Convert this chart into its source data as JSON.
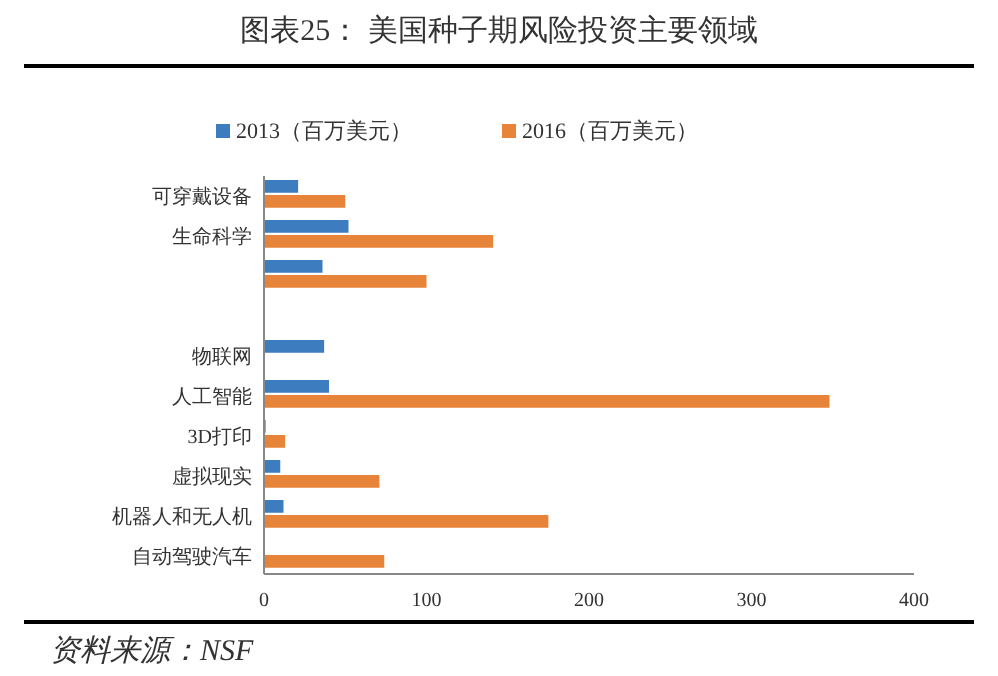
{
  "chart_data": {
    "type": "bar",
    "orientation": "horizontal",
    "title": "图表25：  美国种子期风险投资主要领域",
    "categories": [
      "可穿戴设备",
      "生命科学",
      null,
      null,
      "物联网",
      "人工智能",
      "3D打印",
      "虚拟现实",
      "机器人和无人机",
      "自动驾驶汽车"
    ],
    "series": [
      {
        "name": "2013（百万美元）",
        "color": "#3e7cc0",
        "values": [
          21,
          52,
          36,
          null,
          37,
          40,
          1,
          10,
          12,
          0
        ]
      },
      {
        "name": "2016（百万美元）",
        "color": "#e8833a",
        "values": [
          50,
          141,
          100,
          null,
          null,
          348,
          13,
          71,
          175,
          74
        ]
      }
    ],
    "xlim": [
      0,
      400
    ],
    "xticks": [
      0,
      100,
      200,
      300,
      400
    ],
    "legend": "top",
    "grid": false,
    "annotations": [
      "资料来源：NSF"
    ]
  }
}
